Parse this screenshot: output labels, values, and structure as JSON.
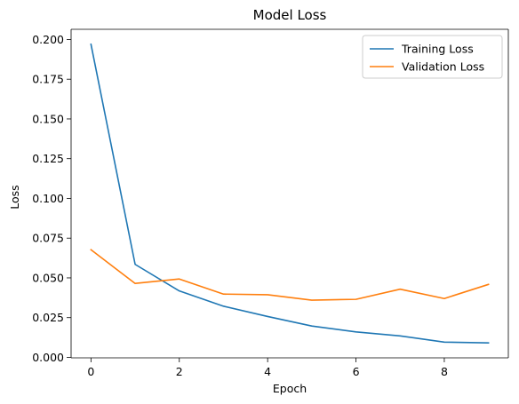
{
  "chart_data": {
    "type": "line",
    "title": "Model Loss",
    "xlabel": "Epoch",
    "ylabel": "Loss",
    "x": [
      0,
      1,
      2,
      3,
      4,
      5,
      6,
      7,
      8,
      9
    ],
    "series": [
      {
        "name": "Training Loss",
        "color": "#1f77b4",
        "values": [
          0.197,
          0.0585,
          0.0418,
          0.0322,
          0.0257,
          0.0197,
          0.016,
          0.0135,
          0.0096,
          0.0091
        ]
      },
      {
        "name": "Validation Loss",
        "color": "#ff7f0e",
        "values": [
          0.0677,
          0.0465,
          0.0493,
          0.0398,
          0.0394,
          0.036,
          0.0365,
          0.0429,
          0.037,
          0.0459
        ]
      }
    ],
    "xlim": [
      -0.45,
      9.45
    ],
    "ylim": [
      -0.0003,
      0.2064
    ],
    "xticks": [
      0,
      2,
      4,
      6,
      8
    ],
    "xtick_labels": [
      "0",
      "2",
      "4",
      "6",
      "8"
    ],
    "yticks": [
      0,
      0.025,
      0.05,
      0.075,
      0.1,
      0.125,
      0.15,
      0.175,
      0.2
    ],
    "ytick_labels": [
      "0.000",
      "0.025",
      "0.050",
      "0.075",
      "0.100",
      "0.125",
      "0.150",
      "0.175",
      "0.200"
    ],
    "grid": false,
    "legend_position": "top-right"
  }
}
